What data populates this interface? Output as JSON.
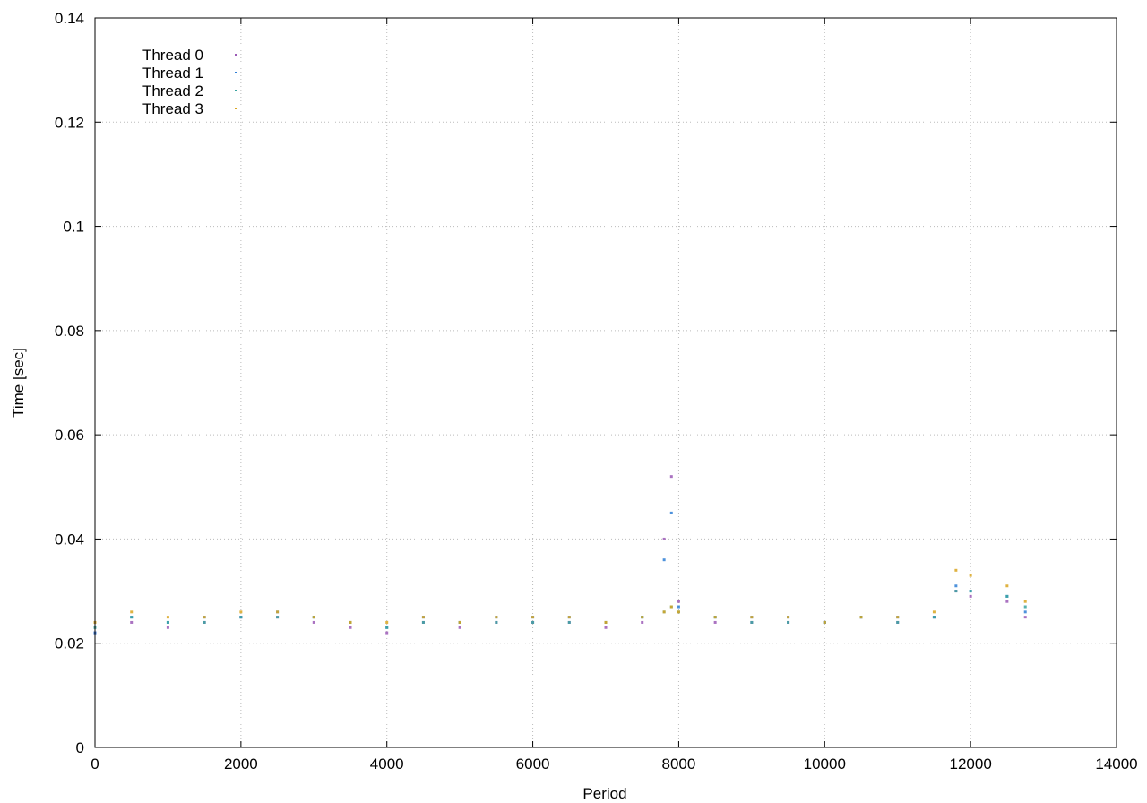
{
  "chart_data": {
    "type": "scatter",
    "title": "",
    "xlabel": "Period",
    "ylabel": "Time [sec]",
    "xlim": [
      0,
      14000
    ],
    "ylim": [
      0,
      0.14
    ],
    "xticks": [
      0,
      2000,
      4000,
      6000,
      8000,
      10000,
      12000,
      14000
    ],
    "yticks": [
      0,
      0.02,
      0.04,
      0.06,
      0.08,
      0.1,
      0.12,
      0.14
    ],
    "xtick_labels": [
      "0",
      "2000",
      "4000",
      "6000",
      "8000",
      "10000",
      "12000",
      "14000"
    ],
    "ytick_labels": [
      "0",
      "0.02",
      "0.04",
      "0.06",
      "0.08",
      "0.1",
      "0.12",
      "0.14"
    ],
    "grid": true,
    "legend_position": "top-left",
    "series": [
      {
        "name": "Thread 0",
        "color": "#9b59b6",
        "x": [
          0,
          500,
          1000,
          1500,
          2000,
          2500,
          3000,
          3500,
          4000,
          4500,
          5000,
          5500,
          6000,
          6500,
          7000,
          7500,
          7800,
          7900,
          8000,
          8500,
          9000,
          9500,
          10000,
          10500,
          11000,
          11500,
          11800,
          12000,
          12500,
          12750
        ],
        "y": [
          0.022,
          0.024,
          0.023,
          0.024,
          0.025,
          0.025,
          0.024,
          0.023,
          0.022,
          0.024,
          0.023,
          0.024,
          0.024,
          0.024,
          0.023,
          0.024,
          0.04,
          0.052,
          0.028,
          0.024,
          0.024,
          0.024,
          0.024,
          0.025,
          0.024,
          0.025,
          0.03,
          0.029,
          0.028,
          0.025
        ]
      },
      {
        "name": "Thread 1",
        "color": "#2f7fd6",
        "x": [
          0,
          500,
          1000,
          1500,
          2000,
          2500,
          3000,
          3500,
          4000,
          4500,
          5000,
          5500,
          6000,
          6500,
          7000,
          7500,
          7800,
          7900,
          8000,
          8500,
          9000,
          9500,
          10000,
          10500,
          11000,
          11500,
          11800,
          12000,
          12500,
          12750
        ],
        "y": [
          0.022,
          0.025,
          0.024,
          0.025,
          0.025,
          0.026,
          0.025,
          0.024,
          0.023,
          0.025,
          0.024,
          0.025,
          0.025,
          0.025,
          0.024,
          0.025,
          0.036,
          0.045,
          0.027,
          0.025,
          0.025,
          0.025,
          0.024,
          0.025,
          0.025,
          0.025,
          0.031,
          0.03,
          0.029,
          0.026
        ]
      },
      {
        "name": "Thread 2",
        "color": "#3aa3a0",
        "x": [
          0,
          500,
          1000,
          1500,
          2000,
          2500,
          3000,
          3500,
          4000,
          4500,
          5000,
          5500,
          6000,
          6500,
          7000,
          7500,
          7800,
          7900,
          8000,
          8500,
          9000,
          9500,
          10000,
          10500,
          11000,
          11500,
          11800,
          12000,
          12500,
          12750
        ],
        "y": [
          0.023,
          0.025,
          0.024,
          0.024,
          0.025,
          0.025,
          0.025,
          0.024,
          0.023,
          0.024,
          0.024,
          0.024,
          0.024,
          0.024,
          0.024,
          0.025,
          0.026,
          0.027,
          0.026,
          0.025,
          0.024,
          0.024,
          0.024,
          0.025,
          0.024,
          0.025,
          0.03,
          0.03,
          0.029,
          0.027
        ]
      },
      {
        "name": "Thread 3",
        "color": "#d9a520",
        "x": [
          0,
          500,
          1000,
          1500,
          2000,
          2500,
          3000,
          3500,
          4000,
          4500,
          5000,
          5500,
          6000,
          6500,
          7000,
          7500,
          7800,
          7900,
          8000,
          8500,
          9000,
          9500,
          10000,
          10500,
          11000,
          11500,
          11800,
          12000,
          12500,
          12750
        ],
        "y": [
          0.024,
          0.026,
          0.025,
          0.025,
          0.026,
          0.026,
          0.025,
          0.024,
          0.024,
          0.025,
          0.024,
          0.025,
          0.025,
          0.025,
          0.024,
          0.025,
          0.026,
          0.027,
          0.026,
          0.025,
          0.025,
          0.025,
          0.024,
          0.025,
          0.025,
          0.026,
          0.034,
          0.033,
          0.031,
          0.028
        ]
      }
    ]
  }
}
